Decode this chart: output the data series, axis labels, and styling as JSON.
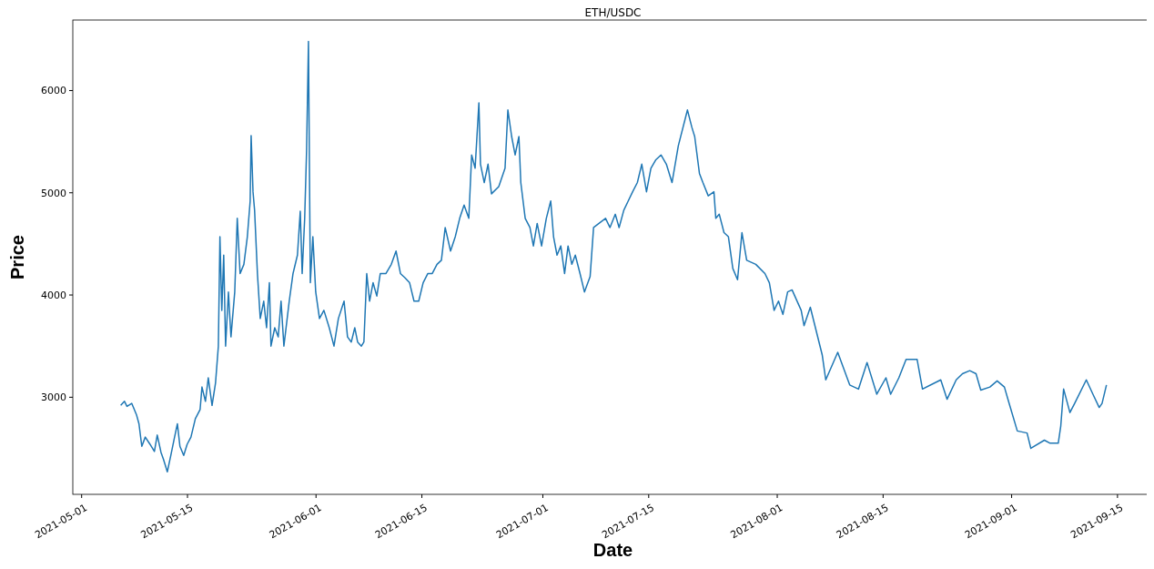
{
  "chart_data": {
    "type": "line",
    "title": "ETH/USDC",
    "xlabel": "Date",
    "ylabel": "Price",
    "xlim": [
      "2021-04-29T20:00",
      "2021-09-19T17:00"
    ],
    "xticks": [
      {
        "value": "2021-05-01",
        "label": "2021-05-01"
      },
      {
        "value": "2021-05-15",
        "label": "2021-05-15"
      },
      {
        "value": "2021-06-01",
        "label": "2021-06-01"
      },
      {
        "value": "2021-06-15",
        "label": "2021-06-15"
      },
      {
        "value": "2021-07-01",
        "label": "2021-07-01"
      },
      {
        "value": "2021-07-15",
        "label": "2021-07-15"
      },
      {
        "value": "2021-08-01",
        "label": "2021-08-01"
      },
      {
        "value": "2021-08-15",
        "label": "2021-08-15"
      },
      {
        "value": "2021-09-01",
        "label": "2021-09-01"
      },
      {
        "value": "2021-09-15",
        "label": "2021-09-15"
      }
    ],
    "ylim": [
      2050,
      6690
    ],
    "yticks": [
      3000,
      4000,
      5000,
      6000
    ],
    "grid": false,
    "series": [
      {
        "color": "#1f77b4",
        "x": [
          "2021-05-06T04:00",
          "2021-05-06T16:00",
          "2021-05-07T00:00",
          "2021-05-07T15:00",
          "2021-05-08T06:00",
          "2021-05-08T14:00",
          "2021-05-08T23:00",
          "2021-05-09T10:00",
          "2021-05-10T01:00",
          "2021-05-10T15:00",
          "2021-05-11T00:00",
          "2021-05-11T12:00",
          "2021-05-11T20:00",
          "2021-05-12T08:00",
          "2021-05-12T19:00",
          "2021-05-13T07:00",
          "2021-05-13T16:00",
          "2021-05-14T00:00",
          "2021-05-14T12:00",
          "2021-05-14T23:00",
          "2021-05-15T11:00",
          "2021-05-16T01:00",
          "2021-05-16T16:00",
          "2021-05-16T22:00",
          "2021-05-17T09:00",
          "2021-05-17T18:00",
          "2021-05-18T06:00",
          "2021-05-18T17:00",
          "2021-05-19T02:00",
          "2021-05-19T07:00",
          "2021-05-19T13:00",
          "2021-05-19T19:00",
          "2021-05-20T01:00",
          "2021-05-20T10:00",
          "2021-05-20T18:00",
          "2021-05-21T06:00",
          "2021-05-21T14:00",
          "2021-05-21T23:00",
          "2021-05-22T11:00",
          "2021-05-22T22:00",
          "2021-05-23T07:00",
          "2021-05-23T10:00",
          "2021-05-23T16:00",
          "2021-05-23T21:00",
          "2021-05-24T06:00",
          "2021-05-24T15:00",
          "2021-05-25T02:00",
          "2021-05-25T11:00",
          "2021-05-25T20:00",
          "2021-05-26T01:00",
          "2021-05-26T13:00",
          "2021-05-27T00:00",
          "2021-05-27T09:00",
          "2021-05-27T18:00",
          "2021-05-28T11:00",
          "2021-05-28T23:00",
          "2021-05-29T13:00",
          "2021-05-29T22:00",
          "2021-05-30T04:00",
          "2021-05-30T12:00",
          "2021-05-30T18:00",
          "2021-05-31T00:00",
          "2021-05-31T06:00",
          "2021-05-31T14:00",
          "2021-05-31T23:00",
          "2021-06-01T11:00",
          "2021-06-02T01:00",
          "2021-06-02T18:00",
          "2021-06-03T09:00",
          "2021-06-03T23:00",
          "2021-06-04T17:00",
          "2021-06-05T04:00",
          "2021-06-05T16:00",
          "2021-06-06T03:00",
          "2021-06-06T12:00",
          "2021-06-07T00:00",
          "2021-06-07T08:00",
          "2021-06-07T17:00",
          "2021-06-08T02:00",
          "2021-06-08T13:00",
          "2021-06-09T01:00",
          "2021-06-09T12:00",
          "2021-06-10T06:00",
          "2021-06-10T23:00",
          "2021-06-11T14:00",
          "2021-06-12T04:00",
          "2021-06-12T18:00",
          "2021-06-13T09:00",
          "2021-06-13T23:00",
          "2021-06-14T14:00",
          "2021-06-15T04:00",
          "2021-06-15T19:00",
          "2021-06-16T09:00",
          "2021-06-17T00:00",
          "2021-06-17T14:00",
          "2021-06-18T02:00",
          "2021-06-18T19:00",
          "2021-06-19T10:00",
          "2021-06-20T00:00",
          "2021-06-20T14:00",
          "2021-06-21T05:00",
          "2021-06-21T14:00",
          "2021-06-22T01:00",
          "2021-06-22T13:00",
          "2021-06-22T18:00",
          "2021-06-23T06:00",
          "2021-06-23T18:00",
          "2021-06-24T05:00",
          "2021-06-25T04:00",
          "2021-06-26T00:00",
          "2021-06-26T09:00",
          "2021-06-26T21:00",
          "2021-06-27T08:00",
          "2021-06-27T20:00",
          "2021-06-28T02:00",
          "2021-06-28T16:00",
          "2021-06-29T07:00",
          "2021-06-29T18:00",
          "2021-06-30T06:00",
          "2021-06-30T20:00",
          "2021-07-01T11:00",
          "2021-07-02T01:00",
          "2021-07-02T10:00",
          "2021-07-02T21:00",
          "2021-07-03T09:00",
          "2021-07-03T21:00",
          "2021-07-04T08:00",
          "2021-07-04T20:00",
          "2021-07-05T07:00",
          "2021-07-05T22:00",
          "2021-07-06T12:00",
          "2021-07-07T06:00",
          "2021-07-07T17:00",
          "2021-07-08T10:00",
          "2021-07-09T07:00",
          "2021-07-09T21:00",
          "2021-07-10T14:00",
          "2021-07-11T02:00",
          "2021-07-11T17:00",
          "2021-07-12T07:00",
          "2021-07-12T21:00",
          "2021-07-13T12:00",
          "2021-07-14T02:00",
          "2021-07-14T17:00",
          "2021-07-15T07:00",
          "2021-07-15T22:00",
          "2021-07-16T15:00",
          "2021-07-17T08:00",
          "2021-07-18T02:00",
          "2021-07-18T22:00",
          "2021-07-20T03:00",
          "2021-07-20T17:00",
          "2021-07-21T02:00",
          "2021-07-21T17:00",
          "2021-07-22T04:00",
          "2021-07-22T21:00",
          "2021-07-23T15:00",
          "2021-07-23T21:00",
          "2021-07-24T08:00",
          "2021-07-24T23:00",
          "2021-07-25T13:00",
          "2021-07-26T03:00",
          "2021-07-26T18:00",
          "2021-07-27T08:00",
          "2021-07-27T23:00",
          "2021-07-29T04:00",
          "2021-07-30T09:00",
          "2021-07-30T23:00",
          "2021-07-31T14:00",
          "2021-08-01T04:00",
          "2021-08-01T18:00",
          "2021-08-02T09:00",
          "2021-08-02T23:00",
          "2021-08-04T04:00",
          "2021-08-04T13:00",
          "2021-08-05T09:00",
          "2021-08-06T23:00",
          "2021-08-07T10:00",
          "2021-08-09T00:00",
          "2021-08-10T14:00",
          "2021-08-11T18:00",
          "2021-08-12T21:00",
          "2021-08-14T04:00",
          "2021-08-15T09:00",
          "2021-08-16T00:00",
          "2021-08-17T02:00",
          "2021-08-18T01:00",
          "2021-08-19T12:00",
          "2021-08-20T05:00",
          "2021-08-22T15:00",
          "2021-08-23T11:00",
          "2021-08-24T16:00",
          "2021-08-25T12:00",
          "2021-08-26T11:00",
          "2021-08-27T07:00",
          "2021-08-27T22:00",
          "2021-08-29T03:00",
          "2021-08-30T02:00",
          "2021-08-31T01:00",
          "2021-08-31T16:00",
          "2021-09-01T18:00",
          "2021-09-03T01:00",
          "2021-09-03T13:00",
          "2021-09-05T08:00",
          "2021-09-06T02:00",
          "2021-09-07T04:00",
          "2021-09-07T12:00",
          "2021-09-07T21:00",
          "2021-09-08T17:00",
          "2021-09-09T08:00",
          "2021-09-10T21:00",
          "2021-09-11T18:00",
          "2021-09-12T14:00",
          "2021-09-12T23:00",
          "2021-09-13T13:00"
        ],
        "values": [
          2920,
          2960,
          2910,
          2940,
          2830,
          2740,
          2520,
          2610,
          2540,
          2470,
          2630,
          2460,
          2390,
          2270,
          2430,
          2610,
          2740,
          2520,
          2430,
          2540,
          2610,
          2790,
          2880,
          3100,
          2960,
          3190,
          2920,
          3140,
          3500,
          4570,
          3850,
          4390,
          3500,
          4030,
          3590,
          4030,
          4750,
          4210,
          4300,
          4570,
          4920,
          5560,
          5010,
          4830,
          4210,
          3770,
          3940,
          3680,
          4120,
          3500,
          3680,
          3590,
          3940,
          3500,
          3940,
          4210,
          4390,
          4820,
          4210,
          4750,
          5410,
          6480,
          4120,
          4570,
          4030,
          3770,
          3850,
          3680,
          3500,
          3770,
          3940,
          3590,
          3540,
          3680,
          3540,
          3500,
          3540,
          4210,
          3940,
          4120,
          3990,
          4210,
          4210,
          4300,
          4430,
          4210,
          4170,
          4120,
          3940,
          3940,
          4120,
          4210,
          4210,
          4300,
          4340,
          4660,
          4430,
          4570,
          4750,
          4880,
          4750,
          5370,
          5240,
          5880,
          5280,
          5100,
          5280,
          4990,
          5060,
          5240,
          5810,
          5550,
          5370,
          5550,
          5100,
          4750,
          4660,
          4480,
          4700,
          4480,
          4750,
          4920,
          4570,
          4390,
          4480,
          4210,
          4480,
          4300,
          4390,
          4210,
          4030,
          4180,
          4660,
          4700,
          4750,
          4660,
          4790,
          4660,
          4830,
          4920,
          5010,
          5100,
          5280,
          5010,
          5240,
          5320,
          5370,
          5280,
          5100,
          5460,
          5810,
          5640,
          5550,
          5190,
          5100,
          4970,
          5010,
          4750,
          4790,
          4610,
          4570,
          4260,
          4150,
          4610,
          4340,
          4300,
          4210,
          4120,
          3850,
          3940,
          3810,
          4030,
          4050,
          3850,
          3700,
          3880,
          3410,
          3170,
          3440,
          3120,
          3080,
          3340,
          3030,
          3190,
          3030,
          3190,
          3370,
          3370,
          3080,
          3170,
          2980,
          3170,
          3230,
          3260,
          3230,
          3070,
          3100,
          3160,
          3100,
          2940,
          2670,
          2650,
          2500,
          2580,
          2550,
          2550,
          2720,
          3080,
          2850,
          2940,
          3170,
          3030,
          2900,
          2940,
          3120
        ]
      }
    ]
  }
}
